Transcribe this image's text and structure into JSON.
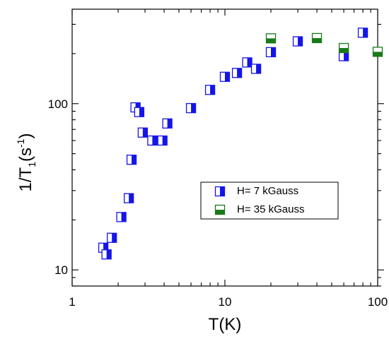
{
  "chart_data": {
    "type": "scatter",
    "title": "",
    "x_axis": {
      "label": "T(K)",
      "scale": "log",
      "range": [
        1,
        100
      ],
      "ticks": [
        1,
        10,
        100
      ],
      "tick_labels": [
        "1",
        "10",
        "100"
      ]
    },
    "y_axis": {
      "label_main": "1/T",
      "label_sub": "1",
      "label_units": "(s",
      "label_sup": "-1",
      "label_close": ")",
      "scale": "log",
      "range": [
        8,
        370
      ],
      "ticks": [
        10,
        100
      ],
      "tick_labels": [
        "10",
        "100"
      ]
    },
    "grid": false,
    "legend": {
      "placement": "center-right",
      "entries": [
        {
          "name": "H= 7 kGauss",
          "color": "#1515e8",
          "marker": "left-half-open-square"
        },
        {
          "name": "H= 35 kGauss",
          "color": "#1a7a1a",
          "marker": "top-half-open-square"
        }
      ]
    },
    "series": [
      {
        "name": "H= 7 kGauss",
        "color": "#1515e8",
        "points": [
          [
            1.6,
            13.6
          ],
          [
            1.68,
            12.4
          ],
          [
            1.82,
            15.6
          ],
          [
            2.1,
            20.8
          ],
          [
            2.35,
            27
          ],
          [
            2.45,
            46
          ],
          [
            2.6,
            95
          ],
          [
            2.75,
            89
          ],
          [
            2.9,
            67
          ],
          [
            3.35,
            60
          ],
          [
            3.9,
            60
          ],
          [
            4.2,
            76
          ],
          [
            6.0,
            94
          ],
          [
            8.0,
            121
          ],
          [
            10.0,
            145
          ],
          [
            12.0,
            153
          ],
          [
            14.0,
            177
          ],
          [
            16.0,
            162
          ],
          [
            20.0,
            204
          ],
          [
            30.0,
            237
          ],
          [
            60.0,
            193
          ],
          [
            80.0,
            267
          ]
        ]
      },
      {
        "name": "H= 35 kGauss",
        "color": "#1a7a1a",
        "points": [
          [
            20.0,
            247
          ],
          [
            40.0,
            248
          ],
          [
            60.0,
            216
          ],
          [
            100.0,
            205
          ]
        ]
      }
    ]
  }
}
